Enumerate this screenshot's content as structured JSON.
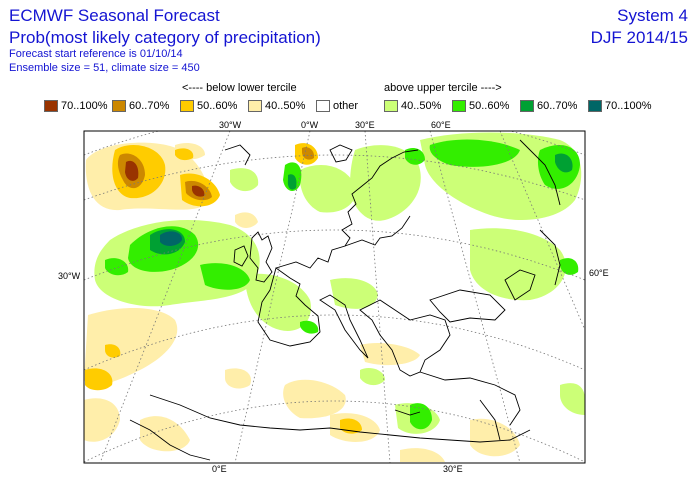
{
  "header": {
    "title_line1": "ECMWF Seasonal Forecast",
    "title_line2": "Prob(most likely category of precipitation)",
    "line3": "Forecast start reference is 01/10/14",
    "line4": "Ensemble size = 51, climate size = 450",
    "system": "System 4",
    "season": "DJF 2014/15"
  },
  "legend": {
    "below_note": "<---- below lower tercile",
    "above_note": "above upper tercile ---->",
    "items": [
      {
        "label": "70..100%",
        "color": "#993300"
      },
      {
        "label": "60..70%",
        "color": "#cc8800"
      },
      {
        "label": "50..60%",
        "color": "#ffcc00"
      },
      {
        "label": "40..50%",
        "color": "#ffeeaa"
      },
      {
        "label": "other",
        "color": "#ffffff"
      },
      {
        "label": "40..50%",
        "color": "#ccff77"
      },
      {
        "label": "50..60%",
        "color": "#33ee00"
      },
      {
        "label": "60..70%",
        "color": "#00a033"
      },
      {
        "label": "70..100%",
        "color": "#006666"
      }
    ]
  },
  "map": {
    "projection_labels": {
      "top_30w": "30°W",
      "top_0w": "0°W",
      "top_30e": "30°E",
      "top_60e": "60°E",
      "left_30w": "30°W",
      "right_60e": "60°E",
      "bottom_0e": "0°E",
      "bottom_30e": "30°E"
    }
  }
}
